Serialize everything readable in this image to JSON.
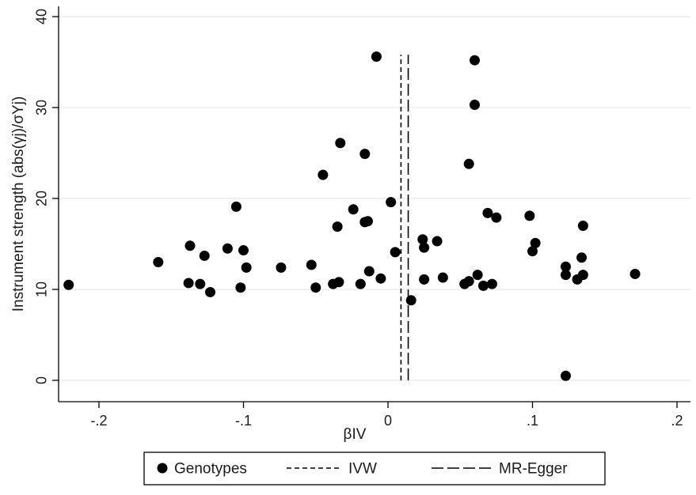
{
  "chart_data": {
    "type": "scatter",
    "xlabel": "βIV",
    "ylabel": "Instrument strength (abs(γj)/σYj)",
    "xlim": [
      -0.225,
      0.21
    ],
    "ylim": [
      -2,
      40
    ],
    "x_ticks": [
      {
        "value": -0.2,
        "label": "-.2"
      },
      {
        "value": -0.1,
        "label": "-.1"
      },
      {
        "value": 0,
        "label": "0"
      },
      {
        "value": 0.1,
        "label": ".1"
      },
      {
        "value": 0.2,
        "label": ".2"
      }
    ],
    "y_ticks": [
      {
        "value": 0,
        "label": "0"
      },
      {
        "value": 10,
        "label": "10"
      },
      {
        "value": 20,
        "label": "20"
      },
      {
        "value": 30,
        "label": "30"
      },
      {
        "value": 40,
        "label": "40"
      }
    ],
    "grid": "horizontal",
    "series": [
      {
        "name": "Genotypes",
        "marker": "filled-circle",
        "color": "#000000",
        "points": [
          {
            "x": -0.221,
            "y": 10.5
          },
          {
            "x": -0.159,
            "y": 13.0
          },
          {
            "x": -0.137,
            "y": 14.8
          },
          {
            "x": -0.138,
            "y": 10.7
          },
          {
            "x": -0.13,
            "y": 10.6
          },
          {
            "x": -0.127,
            "y": 13.7
          },
          {
            "x": -0.123,
            "y": 9.7
          },
          {
            "x": -0.111,
            "y": 14.5
          },
          {
            "x": -0.105,
            "y": 19.1
          },
          {
            "x": -0.1,
            "y": 14.3
          },
          {
            "x": -0.098,
            "y": 12.4
          },
          {
            "x": -0.102,
            "y": 10.2
          },
          {
            "x": -0.074,
            "y": 12.4
          },
          {
            "x": -0.053,
            "y": 12.7
          },
          {
            "x": -0.05,
            "y": 10.2
          },
          {
            "x": -0.045,
            "y": 22.6
          },
          {
            "x": -0.038,
            "y": 10.6
          },
          {
            "x": -0.034,
            "y": 10.8
          },
          {
            "x": -0.035,
            "y": 16.9
          },
          {
            "x": -0.033,
            "y": 26.1
          },
          {
            "x": -0.024,
            "y": 18.8
          },
          {
            "x": -0.019,
            "y": 10.6
          },
          {
            "x": -0.016,
            "y": 24.9
          },
          {
            "x": -0.016,
            "y": 17.4
          },
          {
            "x": -0.014,
            "y": 17.5
          },
          {
            "x": -0.013,
            "y": 12.0
          },
          {
            "x": -0.008,
            "y": 35.6
          },
          {
            "x": -0.005,
            "y": 11.2
          },
          {
            "x": 0.002,
            "y": 19.6
          },
          {
            "x": 0.005,
            "y": 14.1
          },
          {
            "x": 0.016,
            "y": 8.8
          },
          {
            "x": 0.024,
            "y": 15.5
          },
          {
            "x": 0.025,
            "y": 14.6
          },
          {
            "x": 0.025,
            "y": 11.1
          },
          {
            "x": 0.034,
            "y": 15.3
          },
          {
            "x": 0.038,
            "y": 11.3
          },
          {
            "x": 0.053,
            "y": 10.6
          },
          {
            "x": 0.056,
            "y": 10.9
          },
          {
            "x": 0.056,
            "y": 23.8
          },
          {
            "x": 0.06,
            "y": 35.2
          },
          {
            "x": 0.06,
            "y": 30.3
          },
          {
            "x": 0.062,
            "y": 11.6
          },
          {
            "x": 0.066,
            "y": 10.4
          },
          {
            "x": 0.069,
            "y": 18.4
          },
          {
            "x": 0.072,
            "y": 10.6
          },
          {
            "x": 0.075,
            "y": 17.9
          },
          {
            "x": 0.098,
            "y": 18.1
          },
          {
            "x": 0.1,
            "y": 14.2
          },
          {
            "x": 0.102,
            "y": 15.1
          },
          {
            "x": 0.123,
            "y": 12.5
          },
          {
            "x": 0.123,
            "y": 11.6
          },
          {
            "x": 0.123,
            "y": 0.5
          },
          {
            "x": 0.131,
            "y": 11.1
          },
          {
            "x": 0.134,
            "y": 13.5
          },
          {
            "x": 0.135,
            "y": 17.0
          },
          {
            "x": 0.135,
            "y": 11.6
          },
          {
            "x": 0.171,
            "y": 11.7
          }
        ]
      },
      {
        "name": "IVW",
        "type": "vline",
        "x": 0.009,
        "y_range": [
          0,
          35.8
        ],
        "style": "short-dash",
        "color": "#000000"
      },
      {
        "name": "MR-Egger",
        "type": "vline",
        "x": 0.014,
        "y_range": [
          0,
          35.8
        ],
        "style": "long-dash",
        "color": "#000000"
      }
    ],
    "legend": {
      "position": "bottom-center",
      "entries": [
        "Genotypes",
        "IVW",
        "MR-Egger"
      ]
    }
  }
}
